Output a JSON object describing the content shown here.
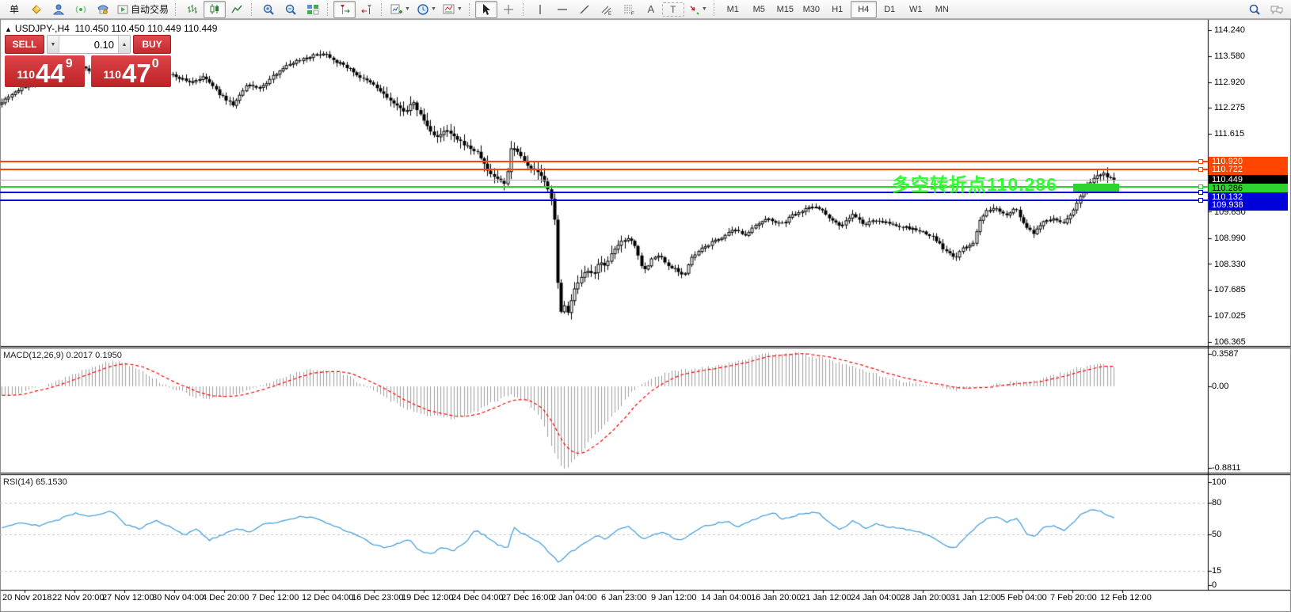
{
  "toolbar": {
    "new_order_label": "单",
    "auto_trading_label": "自动交易",
    "text_tool_label": "A",
    "label_tool_label": "T",
    "icons": [
      "new-order",
      "deposit",
      "profile",
      "signals",
      "market",
      "auto-trading",
      "bar-chart",
      "candlestick",
      "line-chart",
      "zoom-in",
      "zoom-out",
      "tile-windows",
      "chart-shift",
      "auto-scroll",
      "new-chart",
      "periods",
      "templates",
      "cursor",
      "crosshair",
      "vertical-line",
      "horizontal-line",
      "trendline",
      "equidistant-channel",
      "fibonacci",
      "text",
      "text-label",
      "arrows",
      "search",
      "chat"
    ],
    "timeframes": [
      "M1",
      "M5",
      "M15",
      "M30",
      "H1",
      "H4",
      "D1",
      "W1",
      "MN"
    ],
    "active_timeframe": "H4"
  },
  "chart": {
    "marker": "▲",
    "symbol": "USDJPY-,H4",
    "ohlc": "110.450 110.450 110.449 110.449"
  },
  "trade_panel": {
    "sell_label": "SELL",
    "buy_label": "BUY",
    "volume": "0.10",
    "stepper_down": "▼",
    "stepper_up": "▲",
    "sell_price_big_figure": "110",
    "sell_price_main": "44",
    "sell_price_pip": "9",
    "buy_price_big_figure": "110",
    "buy_price_main": "47",
    "buy_price_pip": "0"
  },
  "annotation": {
    "text": "多空转折点110.286",
    "color": "#2eff2e"
  },
  "green_box": {
    "color": "#2fd32f"
  },
  "price_axis": {
    "ticks": [
      {
        "label": "114.240",
        "value": 114.24
      },
      {
        "label": "113.580",
        "value": 113.58
      },
      {
        "label": "112.920",
        "value": 112.92
      },
      {
        "label": "112.275",
        "value": 112.275
      },
      {
        "label": "111.615",
        "value": 111.615
      },
      {
        "label": "109.650",
        "value": 109.65
      },
      {
        "label": "108.990",
        "value": 108.99
      },
      {
        "label": "108.330",
        "value": 108.33
      },
      {
        "label": "107.685",
        "value": 107.685
      },
      {
        "label": "107.025",
        "value": 107.025
      },
      {
        "label": "106.365",
        "value": 106.365
      }
    ],
    "badges": [
      {
        "label": "110.920",
        "value": 110.92,
        "bg": "#ff4500",
        "fg": "#ffffff"
      },
      {
        "label": "110.722",
        "value": 110.722,
        "bg": "#ff4500",
        "fg": "#ffffff"
      },
      {
        "label": "110.449",
        "value": 110.449,
        "bg": "#000000",
        "fg": "#ffffff"
      },
      {
        "label": "110.286",
        "value": 110.286,
        "bg": "#2fd32f",
        "fg": "#000000"
      },
      {
        "label": "110.132",
        "value": 110.132,
        "bg": "#0000d8",
        "fg": "#ffffff"
      },
      {
        "label": "109.938",
        "value": 109.938,
        "bg": "#0000d8",
        "fg": "#ffffff"
      }
    ]
  },
  "macd": {
    "label": "MACD(12,26,9) 0.2017 0.1950",
    "axis": [
      {
        "label": "0.3587",
        "value": 0.3587
      },
      {
        "label": "0.00",
        "value": 0
      },
      {
        "label": "-0.8811",
        "value": -0.8811
      }
    ]
  },
  "rsi": {
    "label": "RSI(14) 65.1530",
    "levels": [
      {
        "label": "100",
        "value": 100,
        "line": false
      },
      {
        "label": "80",
        "value": 80,
        "line": true
      },
      {
        "label": "50",
        "value": 50,
        "line": true
      },
      {
        "label": "15",
        "value": 15,
        "line": true
      },
      {
        "label": "0",
        "value": 0,
        "line": false
      }
    ]
  },
  "time_axis": [
    "20 Nov 2018",
    "22 Nov 20:00",
    "27 Nov 12:00",
    "30 Nov 04:00",
    "4 Dec 20:00",
    "7 Dec 12:00",
    "12 Dec 04:00",
    "16 Dec 23:00",
    "19 Dec 12:00",
    "24 Dec 04:00",
    "27 Dec 16:00",
    "2 Jan 04:00",
    "6 Jan 23:00",
    "9 Jan 12:00",
    "14 Jan 04:00",
    "16 Jan 20:00",
    "21 Jan 12:00",
    "24 Jan 04:00",
    "28 Jan 20:00",
    "31 Jan 12:00",
    "5 Feb 04:00",
    "7 Feb 20:00",
    "12 Feb 12:00"
  ],
  "chart_data": {
    "type": "candlestick",
    "symbol": "USDJPY-",
    "period": "H4",
    "price_range": [
      106.28,
      114.48
    ],
    "macd_range": [
      -0.8811,
      0.3587
    ],
    "rsi_range": [
      0,
      100
    ],
    "candle_count": 333,
    "hlines": [
      {
        "price": 110.92,
        "color": "#ff4500",
        "style": "solid"
      },
      {
        "price": 110.722,
        "color": "#ff4500",
        "style": "solid"
      },
      {
        "price": 110.449,
        "color": "#b4b4b4",
        "style": "current"
      },
      {
        "price": 110.286,
        "color": "#2fd32f",
        "style": "solid"
      },
      {
        "price": 110.132,
        "color": "#0000d8",
        "style": "solid"
      },
      {
        "price": 109.938,
        "color": "#0000d8",
        "style": "solid"
      }
    ],
    "price_anchors": [
      [
        0,
        112.4
      ],
      [
        14,
        112.62
      ],
      [
        40,
        112.92
      ],
      [
        70,
        113.15
      ],
      [
        100,
        113.32
      ],
      [
        128,
        113.08
      ],
      [
        158,
        113.25
      ],
      [
        190,
        113.18
      ],
      [
        218,
        113.1
      ],
      [
        240,
        112.92
      ],
      [
        258,
        113.05
      ],
      [
        278,
        112.6
      ],
      [
        294,
        112.35
      ],
      [
        312,
        112.85
      ],
      [
        330,
        112.78
      ],
      [
        352,
        113.22
      ],
      [
        372,
        113.45
      ],
      [
        392,
        113.58
      ],
      [
        410,
        113.66
      ],
      [
        424,
        113.45
      ],
      [
        440,
        113.28
      ],
      [
        456,
        113.02
      ],
      [
        470,
        112.88
      ],
      [
        486,
        112.58
      ],
      [
        500,
        112.32
      ],
      [
        512,
        112.18
      ],
      [
        521,
        112.42
      ],
      [
        532,
        112.05
      ],
      [
        543,
        111.68
      ],
      [
        553,
        111.52
      ],
      [
        563,
        111.72
      ],
      [
        576,
        111.48
      ],
      [
        590,
        111.3
      ],
      [
        604,
        111.12
      ],
      [
        616,
        110.66
      ],
      [
        628,
        110.48
      ],
      [
        638,
        110.34
      ],
      [
        645,
        111.28
      ],
      [
        653,
        111.2
      ],
      [
        662,
        110.92
      ],
      [
        672,
        110.72
      ],
      [
        682,
        110.6
      ],
      [
        690,
        110.28
      ],
      [
        697,
        109.88
      ],
      [
        701,
        109.3
      ],
      [
        706,
        106.92
      ],
      [
        711,
        107.32
      ],
      [
        717,
        107.12
      ],
      [
        725,
        107.68
      ],
      [
        733,
        107.95
      ],
      [
        741,
        108.18
      ],
      [
        749,
        108.02
      ],
      [
        757,
        108.42
      ],
      [
        765,
        108.28
      ],
      [
        773,
        108.62
      ],
      [
        783,
        108.88
      ],
      [
        793,
        109.0
      ],
      [
        801,
        108.82
      ],
      [
        809,
        108.32
      ],
      [
        816,
        108.18
      ],
      [
        823,
        108.48
      ],
      [
        833,
        108.55
      ],
      [
        843,
        108.28
      ],
      [
        853,
        108.22
      ],
      [
        863,
        108.02
      ],
      [
        873,
        108.48
      ],
      [
        884,
        108.68
      ],
      [
        896,
        108.85
      ],
      [
        911,
        109.0
      ],
      [
        926,
        109.18
      ],
      [
        941,
        109.08
      ],
      [
        956,
        109.32
      ],
      [
        971,
        109.48
      ],
      [
        986,
        109.32
      ],
      [
        1001,
        109.58
      ],
      [
        1016,
        109.72
      ],
      [
        1031,
        109.8
      ],
      [
        1046,
        109.52
      ],
      [
        1061,
        109.28
      ],
      [
        1076,
        109.58
      ],
      [
        1091,
        109.32
      ],
      [
        1106,
        109.45
      ],
      [
        1121,
        109.35
      ],
      [
        1136,
        109.28
      ],
      [
        1151,
        109.22
      ],
      [
        1166,
        109.12
      ],
      [
        1180,
        108.98
      ],
      [
        1192,
        108.68
      ],
      [
        1205,
        108.48
      ],
      [
        1216,
        108.72
      ],
      [
        1228,
        108.85
      ],
      [
        1236,
        109.38
      ],
      [
        1246,
        109.68
      ],
      [
        1258,
        109.74
      ],
      [
        1270,
        109.58
      ],
      [
        1282,
        109.74
      ],
      [
        1294,
        109.28
      ],
      [
        1305,
        109.08
      ],
      [
        1317,
        109.42
      ],
      [
        1329,
        109.48
      ],
      [
        1341,
        109.34
      ],
      [
        1352,
        109.58
      ],
      [
        1362,
        109.98
      ],
      [
        1372,
        110.32
      ],
      [
        1382,
        110.52
      ],
      [
        1392,
        110.64
      ],
      [
        1400,
        110.5
      ],
      [
        1406,
        110.449
      ]
    ],
    "macd_anchors": [
      [
        0,
        -0.1
      ],
      [
        30,
        -0.05
      ],
      [
        60,
        0.02
      ],
      [
        90,
        0.12
      ],
      [
        125,
        0.24
      ],
      [
        150,
        0.27
      ],
      [
        175,
        0.19
      ],
      [
        200,
        0.05
      ],
      [
        220,
        -0.03
      ],
      [
        245,
        -0.11
      ],
      [
        270,
        -0.13
      ],
      [
        300,
        -0.09
      ],
      [
        330,
        0.01
      ],
      [
        360,
        0.11
      ],
      [
        395,
        0.18
      ],
      [
        425,
        0.16
      ],
      [
        455,
        0.04
      ],
      [
        485,
        -0.12
      ],
      [
        515,
        -0.24
      ],
      [
        545,
        -0.32
      ],
      [
        575,
        -0.34
      ],
      [
        600,
        -0.27
      ],
      [
        622,
        -0.17
      ],
      [
        643,
        -0.09
      ],
      [
        665,
        -0.16
      ],
      [
        685,
        -0.38
      ],
      [
        700,
        -0.72
      ],
      [
        712,
        -0.88
      ],
      [
        726,
        -0.78
      ],
      [
        742,
        -0.6
      ],
      [
        762,
        -0.42
      ],
      [
        782,
        -0.22
      ],
      [
        800,
        -0.04
      ],
      [
        820,
        0.08
      ],
      [
        850,
        0.16
      ],
      [
        880,
        0.19
      ],
      [
        910,
        0.23
      ],
      [
        940,
        0.29
      ],
      [
        970,
        0.345
      ],
      [
        1000,
        0.3587
      ],
      [
        1030,
        0.31
      ],
      [
        1060,
        0.25
      ],
      [
        1090,
        0.17
      ],
      [
        1120,
        0.09
      ],
      [
        1150,
        0.04
      ],
      [
        1180,
        0.0
      ],
      [
        1210,
        -0.04
      ],
      [
        1240,
        0.0
      ],
      [
        1268,
        0.04
      ],
      [
        1300,
        0.05
      ],
      [
        1330,
        0.11
      ],
      [
        1360,
        0.19
      ],
      [
        1390,
        0.25
      ],
      [
        1406,
        0.2
      ]
    ],
    "rsi_anchors": [
      [
        0,
        56
      ],
      [
        25,
        61
      ],
      [
        50,
        58
      ],
      [
        75,
        64
      ],
      [
        95,
        70
      ],
      [
        115,
        67
      ],
      [
        140,
        72
      ],
      [
        158,
        59
      ],
      [
        175,
        55
      ],
      [
        195,
        63
      ],
      [
        215,
        57
      ],
      [
        232,
        49
      ],
      [
        248,
        55
      ],
      [
        263,
        44
      ],
      [
        280,
        49
      ],
      [
        298,
        55
      ],
      [
        315,
        52
      ],
      [
        335,
        60
      ],
      [
        355,
        62
      ],
      [
        375,
        66
      ],
      [
        395,
        66
      ],
      [
        412,
        60
      ],
      [
        430,
        55
      ],
      [
        450,
        49
      ],
      [
        468,
        41
      ],
      [
        486,
        37
      ],
      [
        502,
        41
      ],
      [
        515,
        45
      ],
      [
        530,
        34
      ],
      [
        545,
        31
      ],
      [
        558,
        38
      ],
      [
        572,
        34
      ],
      [
        588,
        43
      ],
      [
        600,
        54
      ],
      [
        614,
        47
      ],
      [
        628,
        40
      ],
      [
        640,
        37
      ],
      [
        648,
        56
      ],
      [
        660,
        50
      ],
      [
        673,
        45
      ],
      [
        685,
        39
      ],
      [
        697,
        29
      ],
      [
        706,
        22
      ],
      [
        716,
        31
      ],
      [
        727,
        36
      ],
      [
        740,
        43
      ],
      [
        753,
        48
      ],
      [
        765,
        45
      ],
      [
        778,
        53
      ],
      [
        792,
        58
      ],
      [
        802,
        51
      ],
      [
        812,
        44
      ],
      [
        824,
        50
      ],
      [
        837,
        52
      ],
      [
        850,
        46
      ],
      [
        862,
        44
      ],
      [
        875,
        52
      ],
      [
        888,
        57
      ],
      [
        902,
        60
      ],
      [
        917,
        62
      ],
      [
        932,
        57
      ],
      [
        947,
        62
      ],
      [
        962,
        67
      ],
      [
        977,
        70
      ],
      [
        988,
        64
      ],
      [
        1002,
        67
      ],
      [
        1017,
        70
      ],
      [
        1032,
        71
      ],
      [
        1047,
        61
      ],
      [
        1062,
        54
      ],
      [
        1077,
        63
      ],
      [
        1092,
        55
      ],
      [
        1107,
        60
      ],
      [
        1122,
        57
      ],
      [
        1137,
        55
      ],
      [
        1152,
        53
      ],
      [
        1167,
        50
      ],
      [
        1181,
        45
      ],
      [
        1193,
        39
      ],
      [
        1206,
        37
      ],
      [
        1218,
        46
      ],
      [
        1231,
        56
      ],
      [
        1246,
        65
      ],
      [
        1259,
        67
      ],
      [
        1271,
        61
      ],
      [
        1283,
        65
      ],
      [
        1295,
        51
      ],
      [
        1306,
        47
      ],
      [
        1318,
        57
      ],
      [
        1330,
        58
      ],
      [
        1342,
        53
      ],
      [
        1353,
        60
      ],
      [
        1366,
        70
      ],
      [
        1379,
        74
      ],
      [
        1391,
        71
      ],
      [
        1400,
        67
      ],
      [
        1406,
        65.15
      ]
    ]
  }
}
